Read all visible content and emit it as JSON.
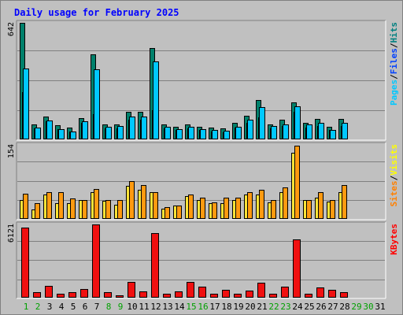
{
  "chart_data": {
    "type": "bar",
    "title": "Daily usage for February 2025",
    "days": [
      "1",
      "2",
      "3",
      "4",
      "5",
      "6",
      "7",
      "8",
      "9",
      "10",
      "11",
      "12",
      "13",
      "14",
      "15",
      "16",
      "17",
      "18",
      "19",
      "20",
      "21",
      "22",
      "23",
      "24",
      "25",
      "26",
      "27",
      "28",
      "29",
      "30",
      "31"
    ],
    "weekend_days": [
      "1",
      "2",
      "8",
      "9",
      "15",
      "16",
      "22",
      "23",
      "29",
      "30"
    ],
    "panels": [
      {
        "name": "hits-files-pages",
        "max_label": "642",
        "ymax": 642,
        "legend": [
          {
            "text": "Pages",
            "color": "#00c8ff"
          },
          {
            "text": "/",
            "color": "#000000"
          },
          {
            "text": "Files",
            "color": "#0040ff"
          },
          {
            "text": "/",
            "color": "#000000"
          },
          {
            "text": "Hits",
            "color": "#008080"
          }
        ],
        "series": [
          {
            "name": "Hits",
            "color": "#00806b",
            "values": [
              642,
              84,
              127,
              79,
              65,
              119,
              467,
              84,
              84,
              151,
              153,
              503,
              84,
              71,
              84,
              69,
              65,
              61,
              92,
              130,
              216,
              82,
              108,
              206,
              93,
              113,
              70,
              111,
              null,
              null,
              null
            ]
          },
          {
            "name": "Files",
            "color": "#0040ff",
            "values": [
              260,
              60,
              100,
              55,
              45,
              90,
              140,
              60,
              60,
              110,
              110,
              160,
              60,
              50,
              60,
              50,
              45,
              40,
              65,
              90,
              120,
              60,
              75,
              150,
              65,
              75,
              50,
              75,
              null,
              null,
              null
            ]
          },
          {
            "name": "Pages",
            "color": "#00c8ff",
            "values": [
              392,
              65,
              106,
              56,
              45,
              101,
              388,
              71,
              72,
              124,
              124,
              429,
              70,
              58,
              70,
              58,
              54,
              49,
              68,
              110,
              176,
              74,
              81,
              182,
              82,
              92,
              51,
              89,
              null,
              null,
              null
            ]
          }
        ]
      },
      {
        "name": "visits-sites",
        "max_label": "154",
        "ymax": 154,
        "legend": [
          {
            "text": "Sites",
            "color": "#ff8000"
          },
          {
            "text": "/",
            "color": "#000000"
          },
          {
            "text": "Visits",
            "color": "#ffff00"
          }
        ],
        "series": [
          {
            "name": "Visits",
            "color": "#ffe438",
            "values": [
              40,
              20,
              50,
              33,
              33,
              40,
              55,
              37,
              30,
              68,
              60,
              55,
              22,
              28,
              48,
              40,
              33,
              33,
              40,
              50,
              50,
              35,
              55,
              138,
              40,
              45,
              36,
              55,
              null,
              null,
              null
            ]
          },
          {
            "name": "Sites",
            "color": "#ff9a10",
            "values": [
              52,
              32,
              56,
              55,
              42,
              40,
              63,
              40,
              40,
              78,
              70,
              55,
              25,
              28,
              50,
              45,
              35,
              45,
              45,
              56,
              60,
              40,
              65,
              153,
              40,
              55,
              40,
              70,
              null,
              null,
              null
            ]
          }
        ]
      },
      {
        "name": "kbytes",
        "max_label": "6121",
        "ymax": 6121,
        "legend": [
          {
            "text": "KBytes",
            "color": "#ff0000"
          }
        ],
        "series": [
          {
            "name": "KBytes",
            "color": "#f01010",
            "values": [
              5850,
              430,
              1020,
              340,
              430,
              750,
              6121,
              430,
              180,
              1320,
              540,
              5400,
              300,
              550,
              1300,
              950,
              300,
              650,
              330,
              600,
              1250,
              330,
              950,
              4900,
              330,
              850,
              650,
              430,
              null,
              null,
              null
            ]
          }
        ]
      }
    ]
  }
}
